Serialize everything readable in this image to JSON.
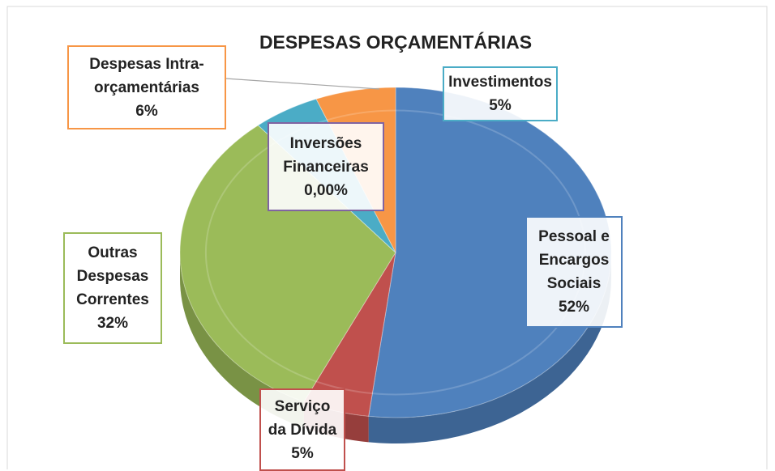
{
  "chart_data": {
    "type": "pie3d",
    "title": "DESPESAS ORÇAMENTÁRIAS",
    "categories": [
      "Pessoal e Encargos Sociais",
      "Serviço da Dívida",
      "Outras Despesas Correntes",
      "Inversões Financeiras",
      "Investimentos",
      "Despesas Intra-orçamentárias"
    ],
    "values": [
      52,
      5,
      32,
      0.0,
      5,
      6
    ],
    "value_labels": [
      "52%",
      "5%",
      "32%",
      "0,00%",
      "5%",
      "6%"
    ],
    "colors": [
      "#4f81bd",
      "#c0504d",
      "#9bbb59",
      "#8064a2",
      "#4bacc6",
      "#f79646"
    ]
  }
}
